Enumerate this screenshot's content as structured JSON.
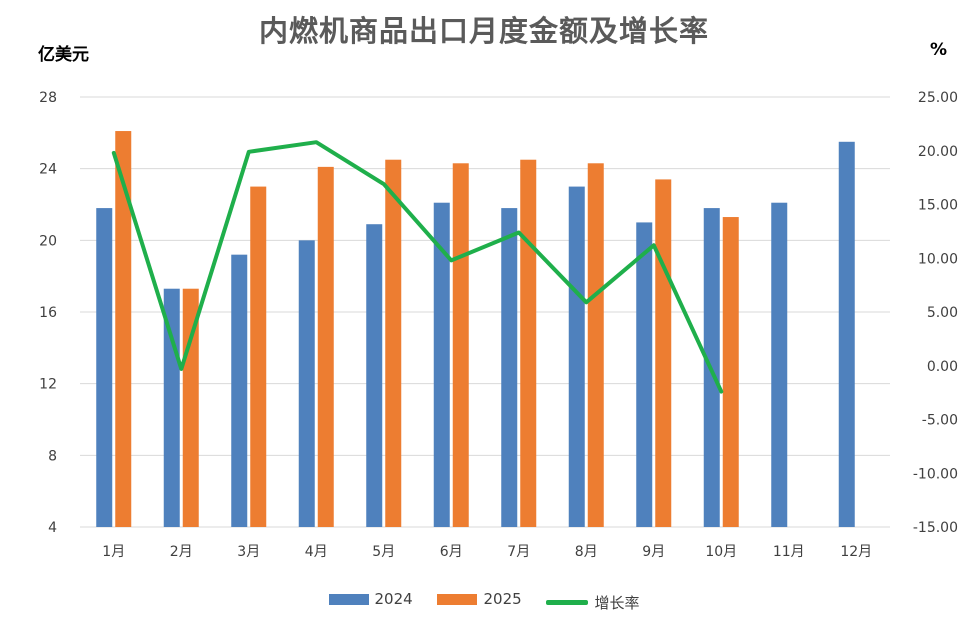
{
  "chart_data": {
    "type": "bar",
    "title": "内燃机商品出口月度金额及增长率",
    "ylabel_left": "亿美元",
    "ylabel_right": "%",
    "categories": [
      "1月",
      "2月",
      "3月",
      "4月",
      "5月",
      "6月",
      "7月",
      "8月",
      "9月",
      "10月",
      "11月",
      "12月"
    ],
    "ylim_left": [
      4,
      28
    ],
    "yticks_left": [
      "4",
      "8",
      "12",
      "16",
      "20",
      "24",
      "28"
    ],
    "ylim_right": [
      -15,
      25
    ],
    "yticks_right": [
      "-15.00",
      "-10.00",
      "-5.00",
      "0.00",
      "5.00",
      "10.00",
      "15.00",
      "20.00",
      "25.00"
    ],
    "grid": true,
    "series": [
      {
        "name": "2024",
        "type": "bar",
        "color": "#4f81bd",
        "values": [
          21.8,
          17.3,
          19.2,
          20.0,
          20.9,
          22.1,
          21.8,
          23.0,
          21.0,
          21.8,
          22.1,
          25.5
        ]
      },
      {
        "name": "2025",
        "type": "bar",
        "color": "#ed7d31",
        "values": [
          26.1,
          17.3,
          23.0,
          24.1,
          24.5,
          24.3,
          24.5,
          24.3,
          23.4,
          21.3,
          null,
          null
        ]
      },
      {
        "name": "增长率",
        "type": "line",
        "axis": "right",
        "color": "#1faf4b",
        "values": [
          19.8,
          -0.3,
          19.9,
          20.8,
          16.9,
          9.8,
          12.4,
          5.9,
          11.2,
          -2.4,
          null,
          null
        ]
      }
    ],
    "legend_position": "bottom"
  }
}
